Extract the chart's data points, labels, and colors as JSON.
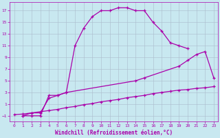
{
  "xlabel": "Windchill (Refroidissement éolien,°C)",
  "background_color": "#c8e8f0",
  "grid_color": "#aabbcc",
  "line_color": "#aa00aa",
  "xlim": [
    -0.5,
    23.5
  ],
  "ylim": [
    -2,
    18.5
  ],
  "xticks": [
    0,
    1,
    2,
    3,
    4,
    5,
    6,
    7,
    8,
    9,
    10,
    11,
    12,
    13,
    14,
    15,
    16,
    17,
    18,
    19,
    20,
    21,
    22,
    23
  ],
  "yticks": [
    -1,
    1,
    3,
    5,
    7,
    9,
    11,
    13,
    15,
    17
  ],
  "c1x": [
    1,
    2,
    3,
    4,
    5,
    6,
    7,
    8,
    9,
    10,
    11,
    12,
    13,
    14,
    15,
    16,
    17,
    18,
    19,
    20
  ],
  "c1y": [
    -1.0,
    -1.0,
    -1.0,
    2.5,
    2.5,
    3.0,
    11.0,
    14.0,
    16.0,
    17.0,
    17.0,
    17.5,
    17.5,
    17.0,
    17.0,
    15.0,
    13.5,
    11.5,
    11.0,
    10.5
  ],
  "c2x": [
    1,
    2,
    3,
    4,
    5,
    6,
    14,
    15,
    19,
    20,
    21,
    22,
    23
  ],
  "c2y": [
    -1.0,
    -0.5,
    -0.5,
    2.0,
    2.5,
    3.0,
    5.0,
    5.5,
    7.5,
    8.5,
    9.5,
    10.0,
    5.5
  ],
  "c3x": [
    0,
    1,
    2,
    3,
    4,
    5,
    6,
    7,
    8,
    9,
    10,
    11,
    12,
    13,
    14,
    15,
    16,
    17,
    18,
    19,
    20,
    21,
    22,
    23
  ],
  "c3y": [
    -0.8,
    -0.7,
    -0.5,
    -0.3,
    -0.1,
    0.1,
    0.4,
    0.6,
    0.9,
    1.1,
    1.4,
    1.6,
    1.8,
    2.1,
    2.3,
    2.5,
    2.8,
    3.0,
    3.2,
    3.4,
    3.5,
    3.7,
    3.8,
    4.0
  ]
}
